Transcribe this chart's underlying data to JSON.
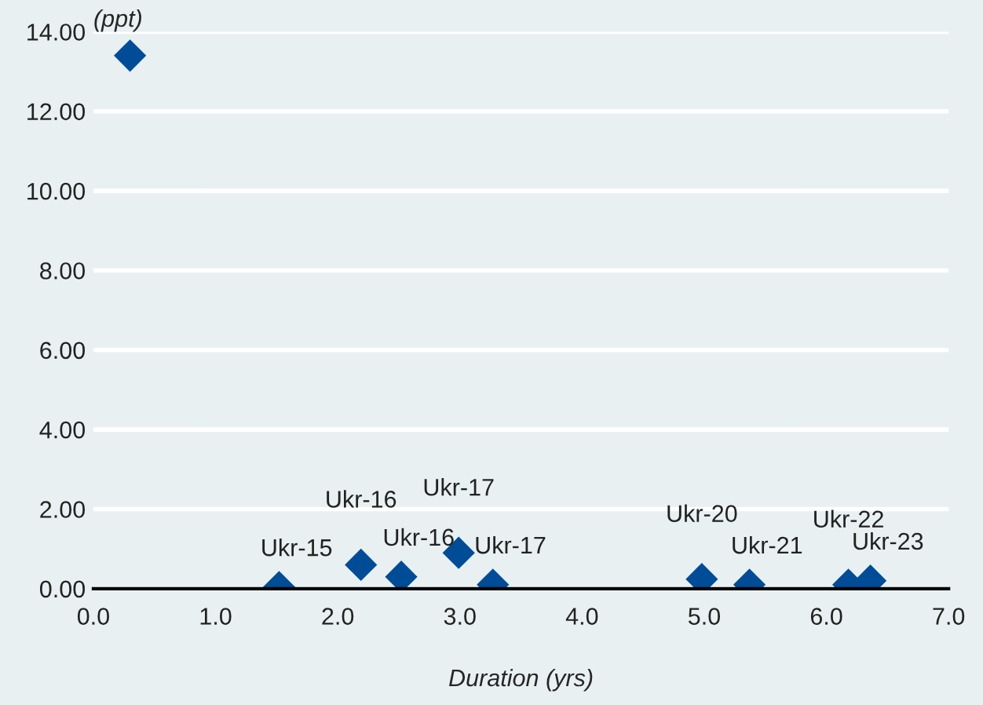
{
  "chart_data": {
    "type": "scatter",
    "xlabel": "Duration (yrs)",
    "ylabel": "(ppt)",
    "x": [
      0.3,
      1.52,
      2.19,
      2.52,
      2.99,
      3.27,
      4.98,
      5.37,
      6.18,
      6.36
    ],
    "series": [
      {
        "color": "#004c97",
        "values": [
          13.4,
          0.04,
          0.6,
          0.3,
          0.9,
          0.1,
          0.24,
          0.1,
          0.1,
          0.2
        ]
      }
    ],
    "annotations": [
      {
        "text": "Ukr-15",
        "x": 1.52,
        "y": 0.04
      },
      {
        "text": "Ukr-16",
        "x": 2.19,
        "y": 0.6
      },
      {
        "text": "Ukr-16",
        "x": 2.52,
        "y": 0.3
      },
      {
        "text": "Ukr-17",
        "x": 2.99,
        "y": 0.9
      },
      {
        "text": "Ukr-17",
        "x": 3.27,
        "y": 0.1
      },
      {
        "text": "Ukr-20",
        "x": 4.98,
        "y": 0.24
      },
      {
        "text": "Ukr-21",
        "x": 5.37,
        "y": 0.1
      },
      {
        "text": "Ukr-22",
        "x": 6.18,
        "y": 0.1
      },
      {
        "text": "Ukr-23",
        "x": 6.36,
        "y": 0.2
      }
    ],
    "xlim": [
      0,
      7
    ],
    "xticks": [
      {
        "value": 0,
        "label": "0.0"
      },
      {
        "value": 1,
        "label": "1.0"
      },
      {
        "value": 2,
        "label": "2.0"
      },
      {
        "value": 3,
        "label": "3.0"
      },
      {
        "value": 4,
        "label": "4.0"
      },
      {
        "value": 5,
        "label": "5.0"
      },
      {
        "value": 6,
        "label": "6.0"
      },
      {
        "value": 7,
        "label": "7.0"
      }
    ],
    "ylim": [
      0,
      14
    ],
    "yticks": [
      {
        "value": 0,
        "label": "0.00"
      },
      {
        "value": 2,
        "label": "2.00"
      },
      {
        "value": 4,
        "label": "4.00"
      },
      {
        "value": 6,
        "label": "6.00"
      },
      {
        "value": 8,
        "label": "8.00"
      },
      {
        "value": 10,
        "label": "10.00"
      },
      {
        "value": 12,
        "label": "12.00"
      },
      {
        "value": 14,
        "label": "14.00"
      }
    ],
    "grid": "y",
    "marker": "diamond"
  }
}
